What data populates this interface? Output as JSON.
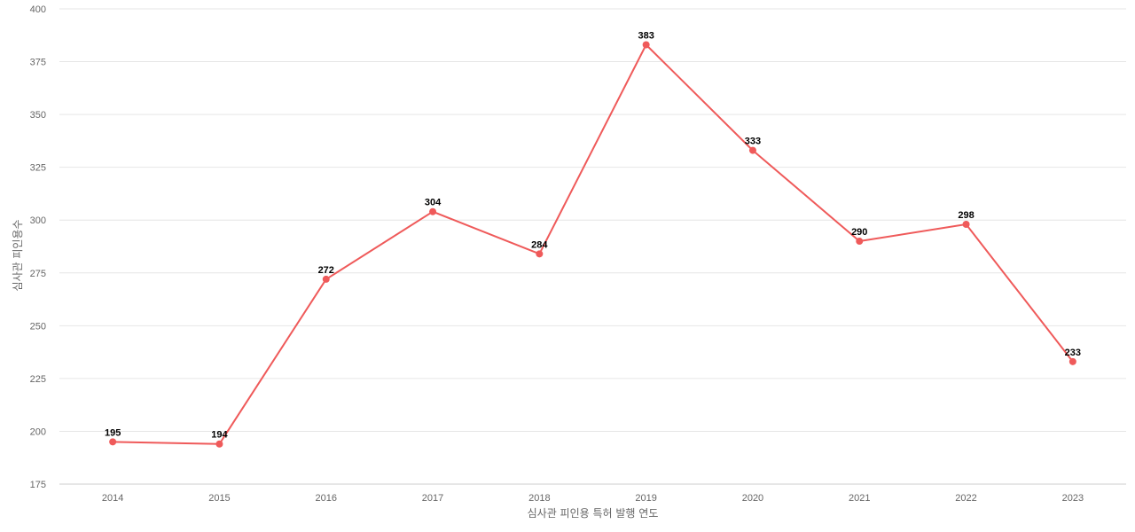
{
  "chart_data": {
    "type": "line",
    "title": "",
    "xlabel": "심사관 피인용 특허 발행 연도",
    "ylabel": "심사관 피인용수",
    "categories": [
      "2014",
      "2015",
      "2016",
      "2017",
      "2018",
      "2019",
      "2020",
      "2021",
      "2022",
      "2023"
    ],
    "series": [
      {
        "values": [
          195,
          194,
          272,
          304,
          284,
          383,
          333,
          290,
          298,
          233
        ],
        "color": "#ef5a5a"
      }
    ],
    "ylim": [
      175,
      400
    ],
    "yticks": [
      175,
      200,
      225,
      250,
      275,
      300,
      325,
      350,
      375,
      400
    ],
    "grid": true,
    "data_labels": true,
    "legend": "none"
  }
}
